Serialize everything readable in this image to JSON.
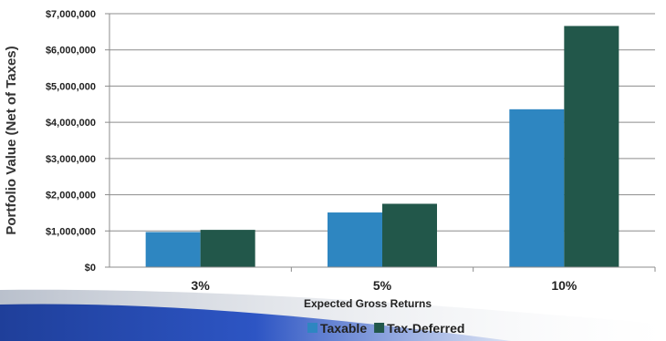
{
  "chart_data": {
    "type": "bar",
    "categories": [
      "3%",
      "5%",
      "10%"
    ],
    "series": [
      {
        "name": "Taxable",
        "values": [
          970000,
          1510000,
          4360000
        ],
        "color": "#2e86c1"
      },
      {
        "name": "Tax-Deferred",
        "values": [
          1030000,
          1750000,
          6660000
        ],
        "color": "#22574a"
      }
    ],
    "xlabel": "Expected Gross Returns",
    "ylabel": "Portfolio Value (Net of Taxes)",
    "ylim": [
      0,
      7000000
    ],
    "yticks": [
      "$0",
      "$1,000,000",
      "$2,000,000",
      "$3,000,000",
      "$4,000,000",
      "$5,000,000",
      "$6,000,000",
      "$7,000,000"
    ],
    "grid": true,
    "legend_position": "bottom"
  }
}
